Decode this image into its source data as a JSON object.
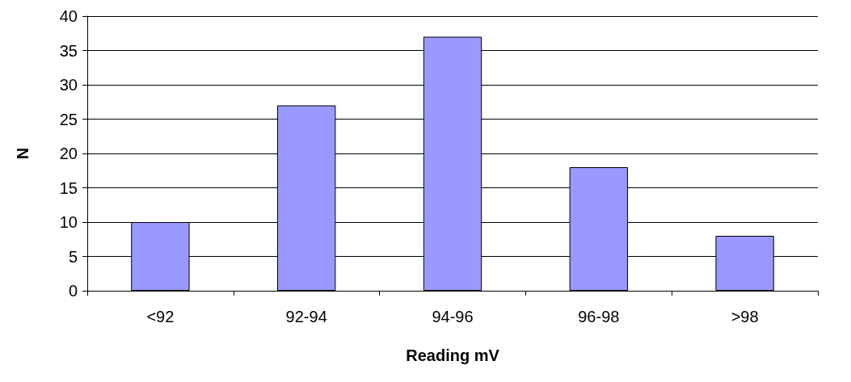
{
  "chart_data": {
    "type": "bar",
    "xlabel": "Reading mV",
    "ylabel": "N",
    "categories": [
      "<92",
      "92-94",
      "94-96",
      "96-98",
      ">98"
    ],
    "values": [
      10,
      27,
      37,
      18,
      8
    ],
    "color": "#9999ff",
    "ylim": [
      0,
      40
    ],
    "yticks": [
      0,
      5,
      10,
      15,
      20,
      25,
      30,
      35,
      40
    ],
    "grid": "y"
  }
}
